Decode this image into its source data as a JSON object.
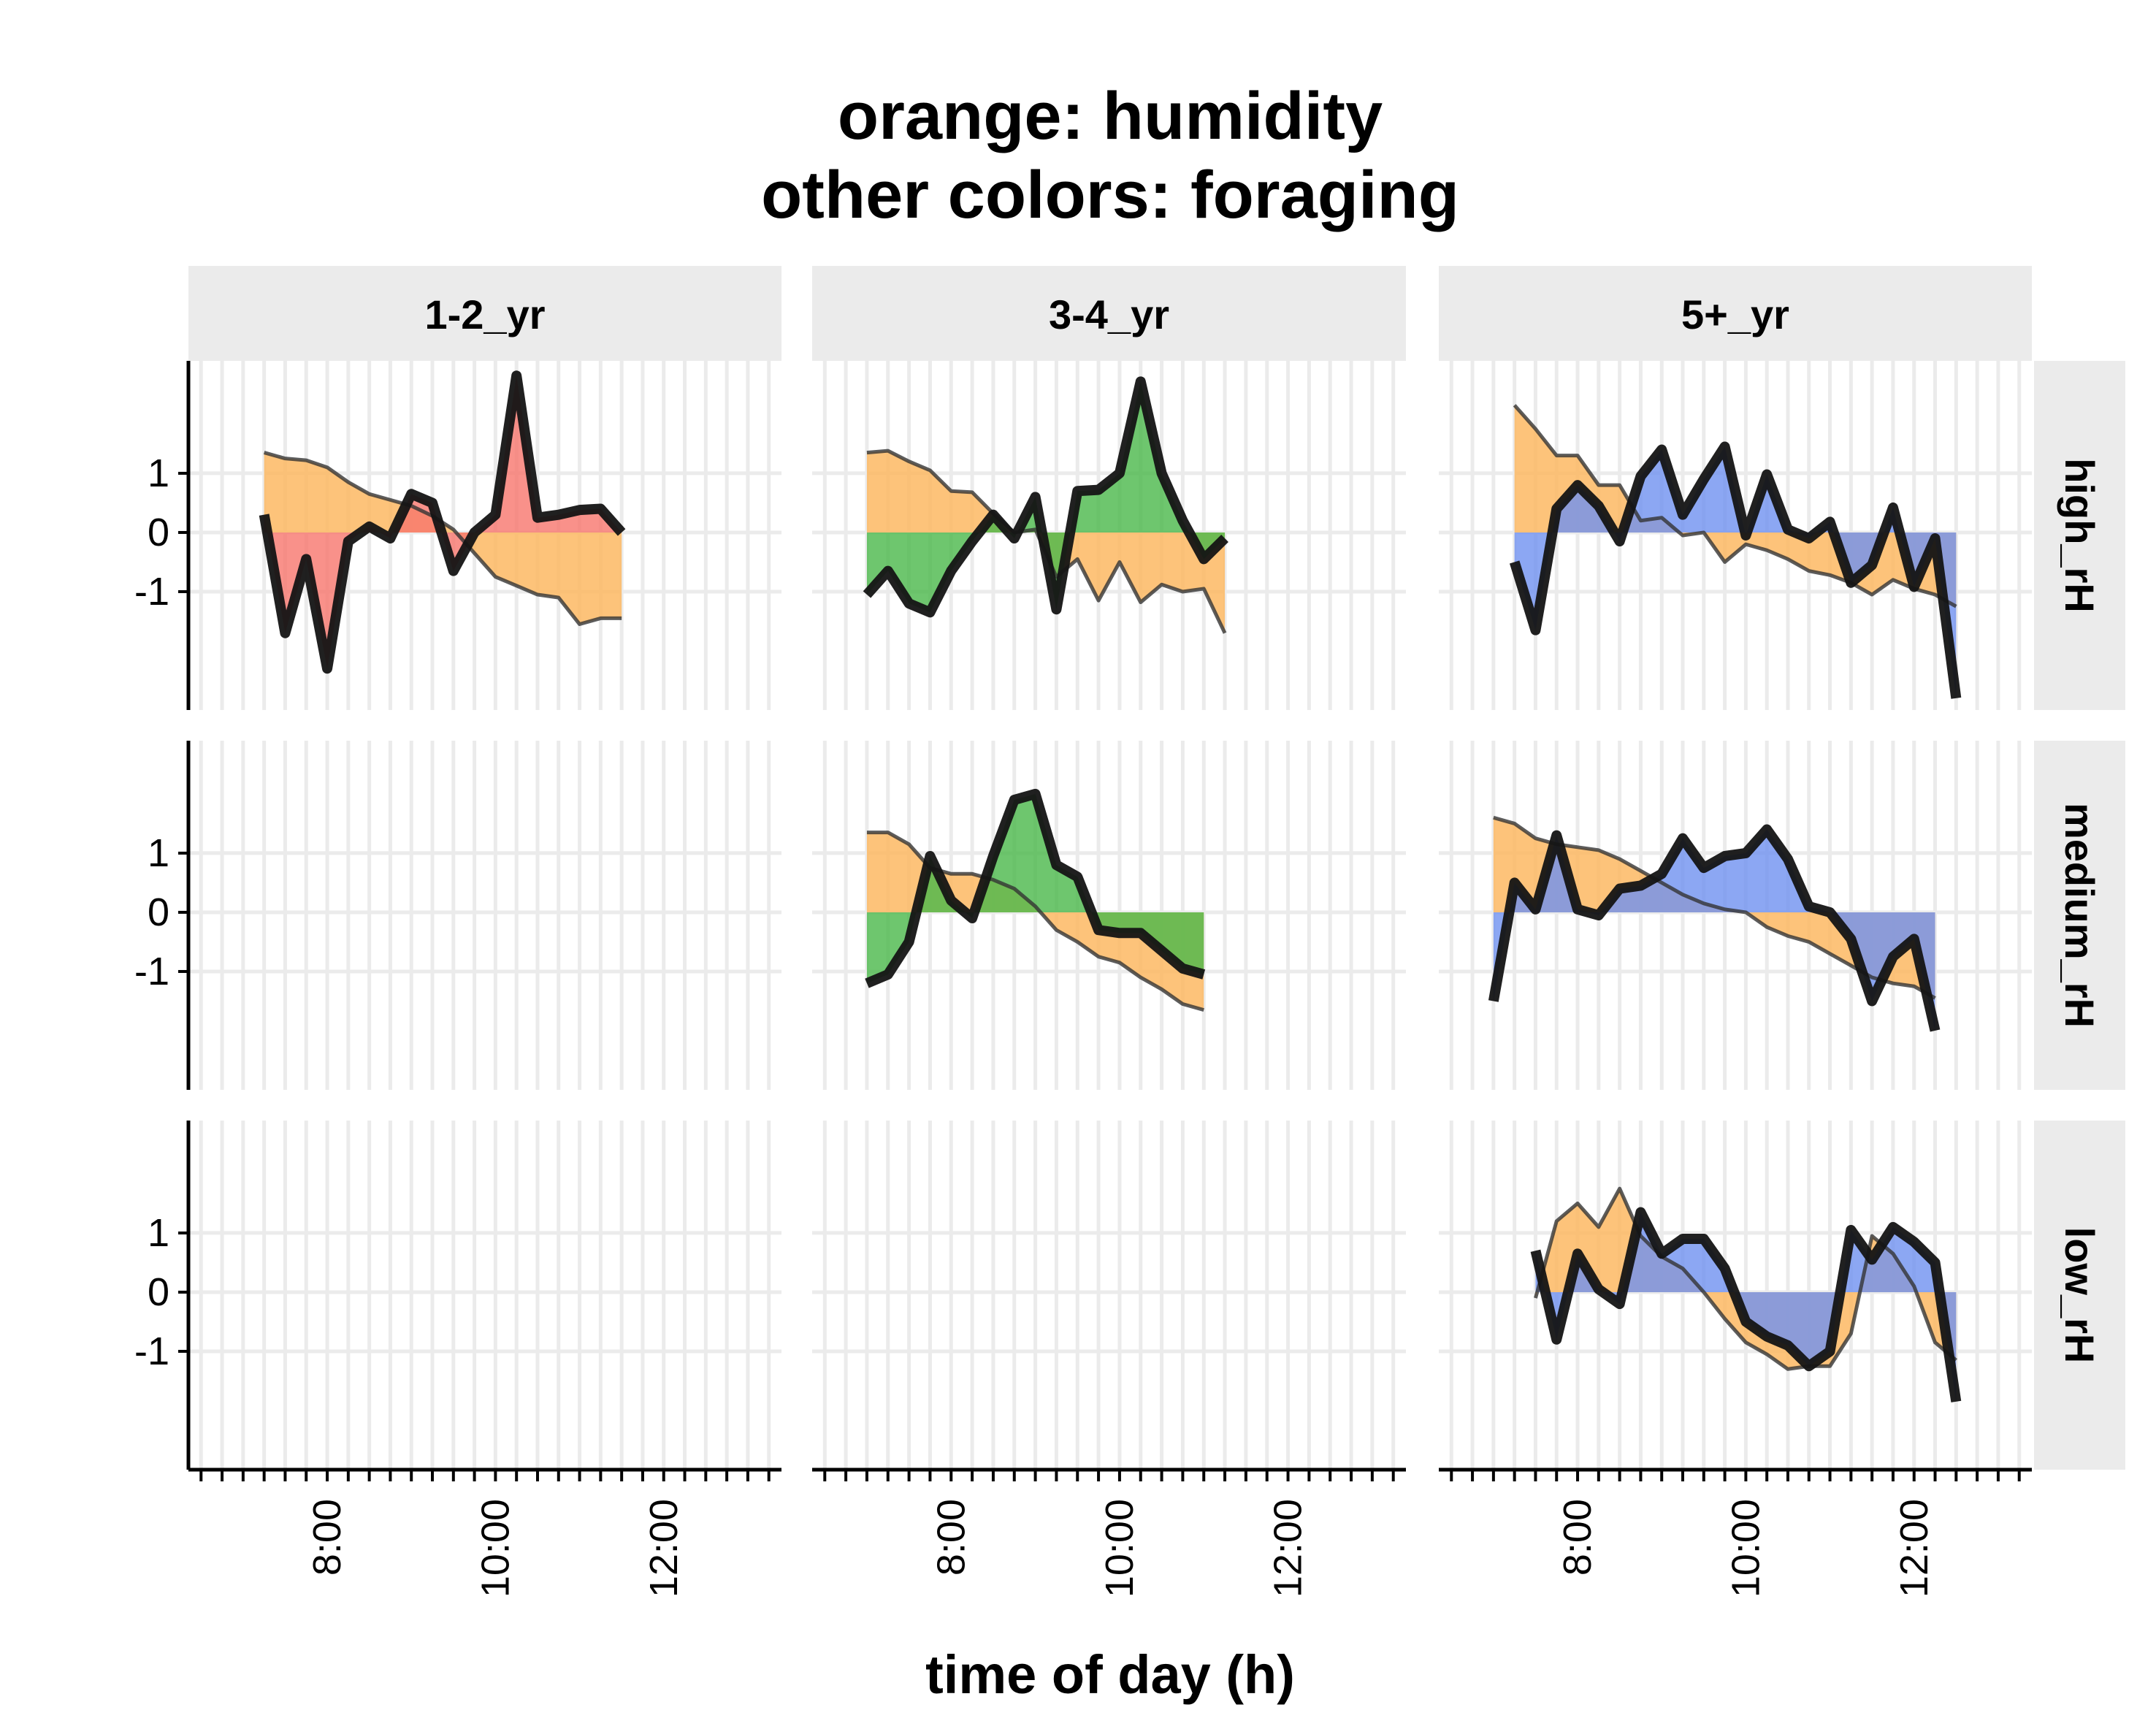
{
  "chart_data": {
    "type": "area",
    "title": [
      "orange: humidity",
      "other colors: foraging"
    ],
    "xlabel": "time of day (h)",
    "ylabel": "",
    "x_unit": "hours",
    "x_range": [
      6.35,
      13.4
    ],
    "y_range": [
      -3.0,
      2.9
    ],
    "grid": true,
    "y_ticks": [
      1,
      0,
      -1
    ],
    "y_tick_labels": [
      "1",
      "0",
      "-1"
    ],
    "x_ticks": [
      8,
      10,
      12
    ],
    "x_tick_labels": [
      "8:00",
      "10:00",
      "12:00"
    ],
    "columns": [
      "1-2_yr",
      "3-4_yr",
      "5+_yr"
    ],
    "rows": [
      "high_rH",
      "medium_rH",
      "low_rH"
    ],
    "colors": {
      "humidity": "#fdb863",
      "1-2_yr": "#f8766d",
      "3-4_yr": "#4ab84a",
      "5+_yr": "#6f91f0",
      "line": "#141414",
      "grid": "#ebebeb",
      "strip": "#ebebeb"
    },
    "panels": [
      {
        "row": "high_rH",
        "column": "1-2_yr",
        "humidity": {
          "x": [
            7.25,
            7.5,
            7.75,
            8.0,
            8.25,
            8.5,
            8.75,
            9.0,
            9.25,
            9.5,
            9.75,
            10.0,
            10.25,
            10.5,
            10.75,
            11.0,
            11.25,
            11.5
          ],
          "y": [
            1.35,
            1.25,
            1.22,
            1.1,
            0.85,
            0.65,
            0.55,
            0.45,
            0.28,
            0.05,
            -0.35,
            -0.75,
            -0.9,
            -1.05,
            -1.1,
            -1.55,
            -1.45,
            -1.45
          ]
        },
        "foraging": {
          "x": [
            7.25,
            7.5,
            7.75,
            8.0,
            8.25,
            8.5,
            8.75,
            9.0,
            9.25,
            9.5,
            9.75,
            10.0,
            10.25,
            10.5,
            10.75,
            11.0,
            11.25,
            11.5
          ],
          "y": [
            0.3,
            -1.7,
            -0.45,
            -2.3,
            -0.15,
            0.1,
            -0.1,
            0.65,
            0.5,
            -0.65,
            0.0,
            0.3,
            2.65,
            0.25,
            0.3,
            0.38,
            0.4,
            0.0
          ]
        }
      },
      {
        "row": "high_rH",
        "column": "3-4_yr",
        "humidity": {
          "x": [
            7.0,
            7.25,
            7.5,
            7.75,
            8.0,
            8.25,
            8.5,
            8.75,
            9.0,
            9.25,
            9.5,
            9.75,
            10.0,
            10.25,
            10.5,
            10.75,
            11.0,
            11.25
          ],
          "y": [
            1.35,
            1.38,
            1.2,
            1.05,
            0.7,
            0.68,
            0.32,
            0.0,
            0.05,
            -0.75,
            -0.45,
            -1.15,
            -0.5,
            -1.18,
            -0.88,
            -1.0,
            -0.95,
            -1.7
          ]
        },
        "foraging": {
          "x": [
            7.0,
            7.25,
            7.5,
            7.75,
            8.0,
            8.25,
            8.5,
            8.75,
            9.0,
            9.25,
            9.5,
            9.75,
            10.0,
            10.25,
            10.5,
            10.75,
            11.0,
            11.25
          ],
          "y": [
            -1.05,
            -0.65,
            -1.2,
            -1.35,
            -0.65,
            -0.15,
            0.3,
            -0.1,
            0.6,
            -1.3,
            0.7,
            0.72,
            1.0,
            2.55,
            1.0,
            0.2,
            -0.45,
            -0.1
          ]
        }
      },
      {
        "row": "high_rH",
        "column": "5+_yr",
        "humidity": {
          "x": [
            7.25,
            7.5,
            7.75,
            8.0,
            8.25,
            8.5,
            8.75,
            9.0,
            9.25,
            9.5,
            9.75,
            10.0,
            10.25,
            10.5,
            10.75,
            11.0,
            11.25,
            11.5,
            11.75,
            12.0,
            12.25,
            12.5
          ],
          "y": [
            2.15,
            1.75,
            1.3,
            1.3,
            0.8,
            0.8,
            0.2,
            0.25,
            -0.05,
            0.0,
            -0.5,
            -0.2,
            -0.3,
            -0.45,
            -0.65,
            -0.72,
            -0.85,
            -1.05,
            -0.8,
            -0.95,
            -1.05,
            -1.25
          ]
        },
        "foraging": {
          "x": [
            7.25,
            7.5,
            7.75,
            8.0,
            8.25,
            8.5,
            8.75,
            9.0,
            9.25,
            9.5,
            9.75,
            10.0,
            10.25,
            10.5,
            10.75,
            11.0,
            11.25,
            11.5,
            11.75,
            12.0,
            12.25,
            12.5
          ],
          "y": [
            -0.5,
            -1.65,
            0.4,
            0.8,
            0.45,
            -0.15,
            0.95,
            1.4,
            0.3,
            0.9,
            1.45,
            -0.05,
            0.98,
            0.05,
            -0.1,
            0.18,
            -0.85,
            -0.55,
            0.42,
            -0.92,
            -0.1,
            -2.8
          ]
        }
      },
      {
        "row": "medium_rH",
        "column": "1-2_yr",
        "humidity": null,
        "foraging": null
      },
      {
        "row": "medium_rH",
        "column": "3-4_yr",
        "humidity": {
          "x": [
            7.0,
            7.25,
            7.5,
            7.75,
            8.0,
            8.25,
            8.5,
            8.75,
            9.0,
            9.25,
            9.5,
            9.75,
            10.0,
            10.25,
            10.5,
            10.75,
            11.0
          ],
          "y": [
            1.35,
            1.35,
            1.15,
            0.75,
            0.65,
            0.65,
            0.55,
            0.4,
            0.1,
            -0.3,
            -0.5,
            -0.75,
            -0.85,
            -1.1,
            -1.3,
            -1.55,
            -1.65
          ]
        },
        "foraging": {
          "x": [
            7.0,
            7.25,
            7.5,
            7.75,
            8.0,
            8.25,
            8.5,
            8.75,
            9.0,
            9.25,
            9.5,
            9.75,
            10.0,
            10.25,
            10.5,
            10.75,
            11.0
          ],
          "y": [
            -1.2,
            -1.05,
            -0.5,
            0.95,
            0.2,
            -0.1,
            0.95,
            1.9,
            2.0,
            0.8,
            0.6,
            -0.3,
            -0.35,
            -0.35,
            -0.65,
            -0.95,
            -1.05
          ]
        }
      },
      {
        "row": "medium_rH",
        "column": "5+_yr",
        "humidity": {
          "x": [
            7.0,
            7.25,
            7.5,
            7.75,
            8.0,
            8.25,
            8.5,
            8.75,
            9.0,
            9.25,
            9.5,
            9.75,
            10.0,
            10.25,
            10.5,
            10.75,
            11.0,
            11.25,
            11.5,
            11.75,
            12.0,
            12.25
          ],
          "y": [
            1.6,
            1.5,
            1.25,
            1.15,
            1.1,
            1.05,
            0.9,
            0.7,
            0.5,
            0.3,
            0.15,
            0.05,
            0.0,
            -0.25,
            -0.4,
            -0.5,
            -0.7,
            -0.9,
            -1.1,
            -1.2,
            -1.25,
            -1.45
          ]
        },
        "foraging": {
          "x": [
            7.0,
            7.25,
            7.5,
            7.75,
            8.0,
            8.25,
            8.5,
            8.75,
            9.0,
            9.25,
            9.5,
            9.75,
            10.0,
            10.25,
            10.5,
            10.75,
            11.0,
            11.25,
            11.5,
            11.75,
            12.0,
            12.25
          ],
          "y": [
            -1.5,
            0.5,
            0.05,
            1.3,
            0.05,
            -0.05,
            0.4,
            0.45,
            0.65,
            1.25,
            0.75,
            0.95,
            1.0,
            1.4,
            0.9,
            0.1,
            0.0,
            -0.45,
            -1.5,
            -0.75,
            -0.45,
            -2.0
          ]
        }
      },
      {
        "row": "low_rH",
        "column": "1-2_yr",
        "humidity": null,
        "foraging": null
      },
      {
        "row": "low_rH",
        "column": "3-4_yr",
        "humidity": null,
        "foraging": null
      },
      {
        "row": "low_rH",
        "column": "5+_yr",
        "humidity": {
          "x": [
            7.5,
            7.75,
            8.0,
            8.25,
            8.5,
            8.75,
            9.0,
            9.25,
            9.5,
            9.75,
            10.0,
            10.25,
            10.5,
            10.75,
            11.0,
            11.25,
            11.5,
            11.75,
            12.0,
            12.25,
            12.5
          ],
          "y": [
            -0.1,
            1.2,
            1.5,
            1.1,
            1.75,
            0.95,
            0.6,
            0.4,
            0.0,
            -0.45,
            -0.85,
            -1.05,
            -1.3,
            -1.25,
            -1.25,
            -0.7,
            0.95,
            0.65,
            0.1,
            -0.85,
            -1.15
          ]
        },
        "foraging": {
          "x": [
            7.5,
            7.75,
            8.0,
            8.25,
            8.5,
            8.75,
            9.0,
            9.25,
            9.5,
            9.75,
            10.0,
            10.25,
            10.5,
            10.75,
            11.0,
            11.25,
            11.5,
            11.75,
            12.0,
            12.25,
            12.5
          ],
          "y": [
            0.7,
            -0.8,
            0.65,
            0.05,
            -0.2,
            1.35,
            0.65,
            0.9,
            0.9,
            0.4,
            -0.5,
            -0.75,
            -0.9,
            -1.25,
            -1.0,
            1.05,
            0.55,
            1.1,
            0.85,
            0.5,
            -1.85
          ]
        }
      }
    ]
  }
}
